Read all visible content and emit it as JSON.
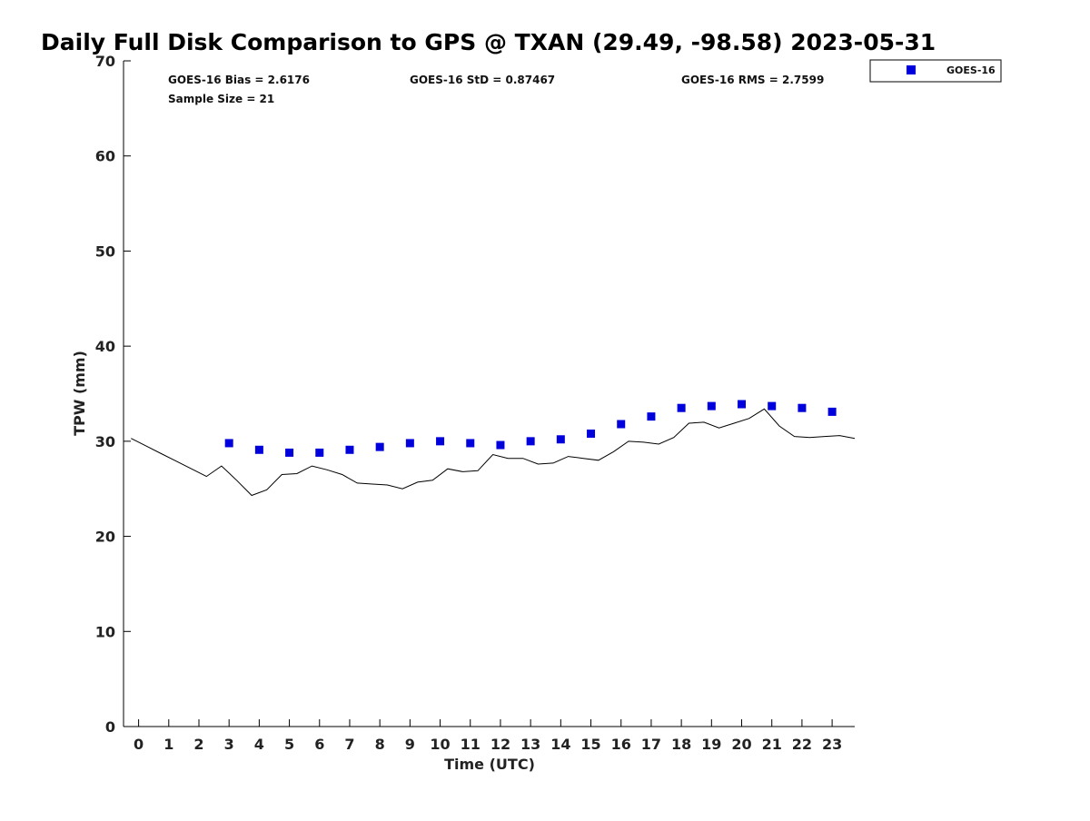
{
  "chart_data": {
    "type": "scatter",
    "title": "Daily Full Disk Comparison to GPS @ TXAN (29.49, -98.58) 2023-05-31",
    "xlabel": "Time (UTC)",
    "ylabel": "TPW (mm)",
    "xlim": [
      -0.5,
      23.75
    ],
    "ylim": [
      0,
      70
    ],
    "x_ticks": [
      "0",
      "1",
      "2",
      "3",
      "4",
      "5",
      "6",
      "7",
      "8",
      "9",
      "10",
      "11",
      "12",
      "13",
      "14",
      "15",
      "16",
      "17",
      "18",
      "19",
      "20",
      "21",
      "22",
      "23"
    ],
    "y_ticks": [
      "0",
      "10",
      "20",
      "30",
      "40",
      "50",
      "60",
      "70"
    ],
    "grid": false,
    "legend": {
      "placement": "top-right",
      "entries": [
        "GOES-16"
      ]
    },
    "stats": {
      "bias": "GOES-16 Bias = 2.6176",
      "std": "GOES-16 StD = 0.87467",
      "rms": "GOES-16 RMS = 2.7599",
      "sample_size": "Sample Size = 21"
    },
    "series": [
      {
        "name": "GOES-16",
        "kind": "scatter",
        "color": "#0000dd",
        "x": [
          3,
          4,
          5,
          6,
          7,
          8,
          9,
          10,
          11,
          12,
          13,
          14,
          15,
          16,
          17,
          18,
          19,
          20,
          21,
          22,
          23
        ],
        "y": [
          29.8,
          29.1,
          28.8,
          28.8,
          29.1,
          29.4,
          29.8,
          30.0,
          29.8,
          29.6,
          30.0,
          30.2,
          30.8,
          31.8,
          32.6,
          33.5,
          33.7,
          33.9,
          33.7,
          33.5,
          33.1
        ]
      },
      {
        "kind": "line",
        "color": "#000000",
        "x": [
          -0.25,
          0.25,
          0.75,
          1.25,
          1.75,
          2.25,
          2.75,
          3.25,
          3.75,
          4.25,
          4.75,
          5.25,
          5.75,
          6.25,
          6.75,
          7.25,
          7.75,
          8.25,
          8.75,
          9.25,
          9.75,
          10.25,
          10.75,
          11.25,
          11.75,
          12.25,
          12.75,
          13.25,
          13.75,
          14.25,
          14.75,
          15.25,
          15.75,
          16.25,
          16.75,
          17.25,
          17.75,
          18.25,
          18.75,
          19.25,
          19.75,
          20.25,
          20.75,
          21.25,
          21.75,
          22.25,
          22.75,
          23.25,
          23.75
        ],
        "y": [
          30.3,
          29.5,
          28.7,
          27.9,
          27.1,
          26.3,
          27.4,
          25.9,
          24.3,
          24.9,
          26.5,
          26.6,
          27.4,
          27.0,
          26.5,
          25.6,
          25.5,
          25.4,
          25.0,
          25.7,
          25.9,
          27.1,
          26.8,
          26.9,
          28.6,
          28.2,
          28.2,
          27.6,
          27.7,
          28.4,
          28.2,
          28.0,
          28.9,
          30.0,
          29.9,
          29.7,
          30.4,
          31.9,
          32.0,
          31.4,
          31.9,
          32.4,
          33.4,
          31.6,
          30.5,
          30.4,
          30.5,
          30.6,
          30.3
        ]
      }
    ]
  }
}
